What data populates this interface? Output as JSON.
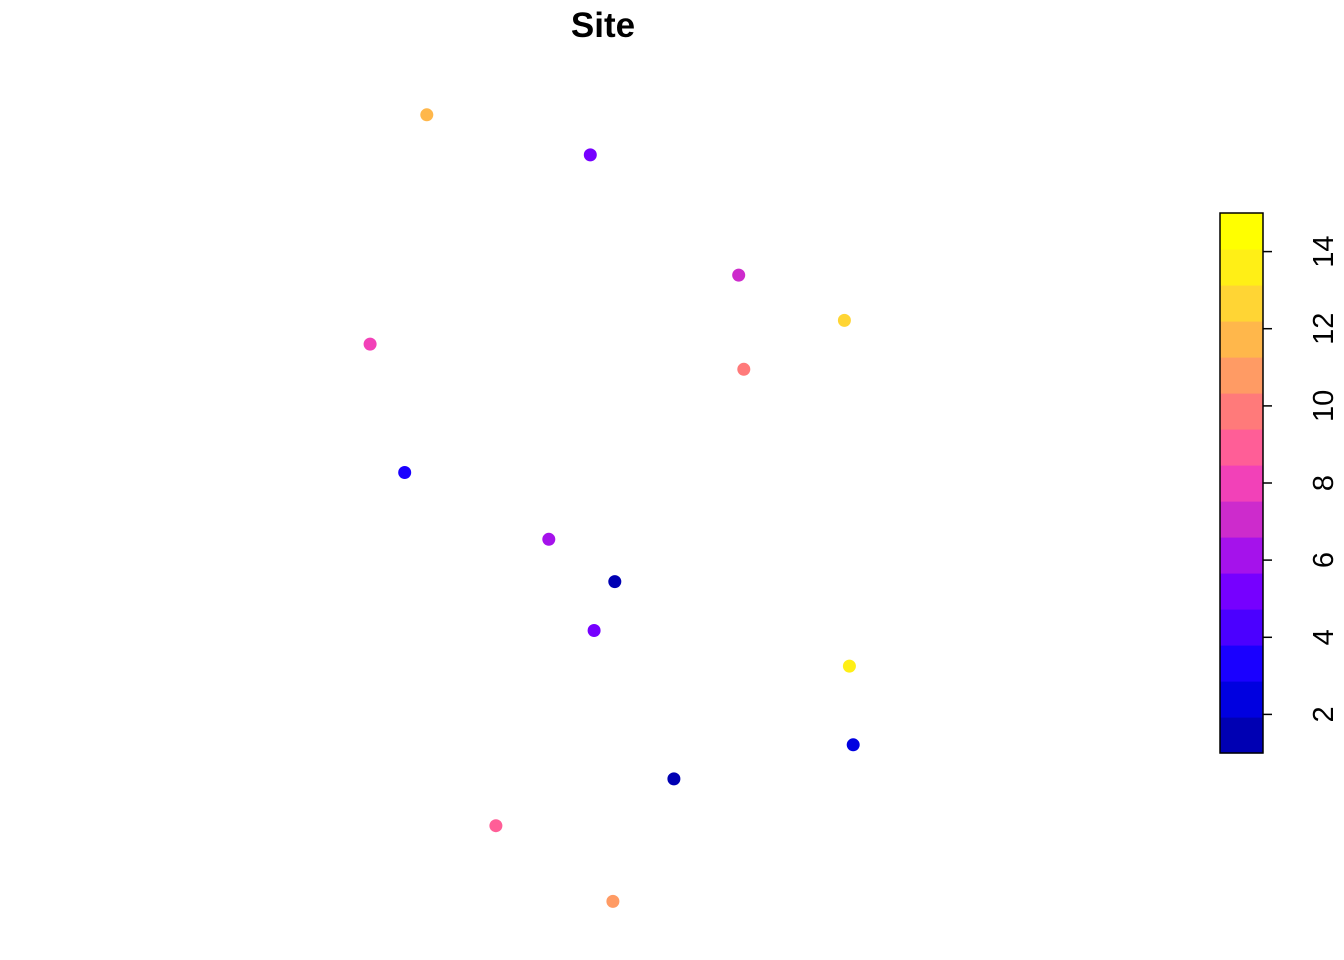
{
  "chart_data": {
    "type": "scatter",
    "title": "Site",
    "xlabel": "",
    "ylabel": "",
    "axes_shown": false,
    "grid": false,
    "legend": "right",
    "colorbar": {
      "min": 1,
      "max": 15,
      "ticks": [
        "2",
        "4",
        "6",
        "8",
        "10",
        "12",
        "14"
      ],
      "tick_values": [
        2,
        4,
        6,
        8,
        10,
        12,
        14
      ],
      "colors": [
        "#0000B3",
        "#0000E0",
        "#1A00FF",
        "#4B00FF",
        "#7600FF",
        "#A512EB",
        "#CD2BCC",
        "#F241B8",
        "#FF5E97",
        "#FF7A7A",
        "#FF9B64",
        "#FFB74B",
        "#FFD534",
        "#FFEF16",
        "#FFFF00"
      ]
    },
    "points": [
      {
        "x": 0.219,
        "y": 0.98,
        "value": 12
      },
      {
        "x": 0.479,
        "y": 0.926,
        "value": 5
      },
      {
        "x": 0.715,
        "y": 0.764,
        "value": 7
      },
      {
        "x": 0.883,
        "y": 0.703,
        "value": 13
      },
      {
        "x": 0.129,
        "y": 0.671,
        "value": 8
      },
      {
        "x": 0.723,
        "y": 0.637,
        "value": 10
      },
      {
        "x": 0.184,
        "y": 0.498,
        "value": 3
      },
      {
        "x": 0.413,
        "y": 0.408,
        "value": 6
      },
      {
        "x": 0.518,
        "y": 0.351,
        "value": 1
      },
      {
        "x": 0.485,
        "y": 0.285,
        "value": 5
      },
      {
        "x": 0.891,
        "y": 0.237,
        "value": 14
      },
      {
        "x": 0.897,
        "y": 0.131,
        "value": 2
      },
      {
        "x": 0.612,
        "y": 0.085,
        "value": 1
      },
      {
        "x": 0.329,
        "y": 0.022,
        "value": 9
      },
      {
        "x": 0.515,
        "y": -0.08,
        "value": 11
      }
    ]
  }
}
